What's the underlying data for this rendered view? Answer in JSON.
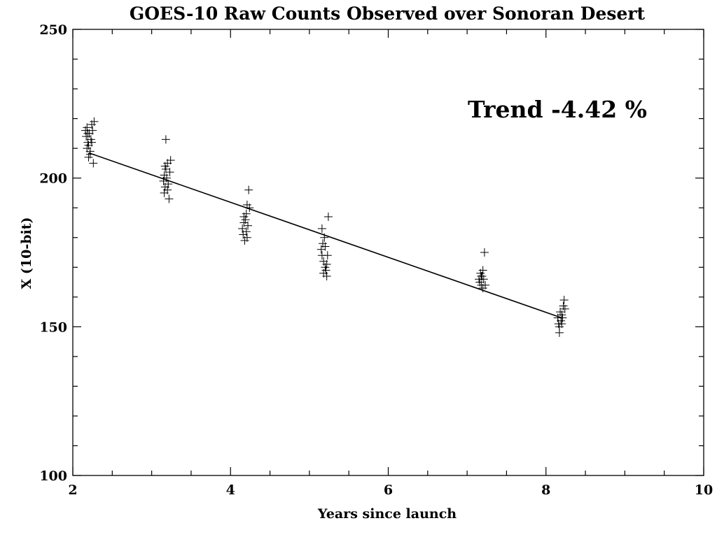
{
  "chart_data": {
    "type": "scatter",
    "title": "GOES-10 Raw Counts Observed over Sonoran Desert",
    "xlabel": "Years since launch",
    "ylabel": "X (10-bit)",
    "xlim": [
      2,
      10
    ],
    "ylim": [
      100,
      250
    ],
    "x_major_ticks": [
      2,
      4,
      6,
      8,
      10
    ],
    "x_tick_labels": [
      "2",
      "4",
      "6",
      "8",
      "10"
    ],
    "x_minor_ticks": [
      2.5,
      3,
      3.5,
      4.5,
      5,
      5.5,
      6.5,
      7,
      7.5,
      8.5,
      9,
      9.5
    ],
    "y_major_ticks": [
      100,
      150,
      200,
      250
    ],
    "y_tick_labels": [
      "100",
      "150",
      "200",
      "250"
    ],
    "y_minor_ticks": [
      110,
      120,
      130,
      140,
      160,
      170,
      180,
      190,
      210,
      220,
      230,
      240
    ],
    "grid": false,
    "annotation": "Trend -4.42 %",
    "series": [
      {
        "marker": "plus",
        "points": [
          [
            2.16,
            216
          ],
          [
            2.17,
            214
          ],
          [
            2.18,
            217
          ],
          [
            2.19,
            212
          ],
          [
            2.2,
            211
          ],
          [
            2.21,
            215
          ],
          [
            2.22,
            209
          ],
          [
            2.2,
            207
          ],
          [
            2.24,
            218
          ],
          [
            2.25,
            216
          ],
          [
            2.26,
            205
          ],
          [
            2.23,
            213
          ],
          [
            2.18,
            210
          ],
          [
            2.27,
            219
          ],
          [
            2.22,
            208
          ],
          [
            2.19,
            215
          ],
          [
            2.24,
            212
          ],
          [
            3.15,
            199
          ],
          [
            3.16,
            201
          ],
          [
            3.17,
            197
          ],
          [
            3.18,
            203
          ],
          [
            3.19,
            200
          ],
          [
            3.2,
            205
          ],
          [
            3.21,
            198
          ],
          [
            3.22,
            193
          ],
          [
            3.16,
            195
          ],
          [
            3.24,
            206
          ],
          [
            3.18,
            213
          ],
          [
            3.23,
            202
          ],
          [
            3.2,
            196
          ],
          [
            3.17,
            204
          ],
          [
            4.15,
            183
          ],
          [
            4.16,
            181
          ],
          [
            4.17,
            185
          ],
          [
            4.18,
            179
          ],
          [
            4.19,
            186
          ],
          [
            4.2,
            188
          ],
          [
            4.21,
            191
          ],
          [
            4.22,
            184
          ],
          [
            4.23,
            196
          ],
          [
            4.2,
            182
          ],
          [
            4.24,
            190
          ],
          [
            4.17,
            187
          ],
          [
            4.21,
            180
          ],
          [
            5.15,
            176
          ],
          [
            5.16,
            174
          ],
          [
            5.17,
            178
          ],
          [
            5.18,
            172
          ],
          [
            5.19,
            180
          ],
          [
            5.2,
            170
          ],
          [
            5.21,
            169
          ],
          [
            5.22,
            167
          ],
          [
            5.23,
            174
          ],
          [
            5.24,
            187
          ],
          [
            5.16,
            183
          ],
          [
            5.18,
            168
          ],
          [
            5.2,
            177
          ],
          [
            5.22,
            171
          ],
          [
            7.15,
            166
          ],
          [
            7.16,
            165
          ],
          [
            7.17,
            168
          ],
          [
            7.18,
            164
          ],
          [
            7.19,
            167
          ],
          [
            7.2,
            169
          ],
          [
            7.21,
            166
          ],
          [
            7.22,
            175
          ],
          [
            7.23,
            164
          ],
          [
            7.18,
            167
          ],
          [
            7.2,
            163
          ],
          [
            8.15,
            153
          ],
          [
            8.16,
            151
          ],
          [
            8.17,
            150
          ],
          [
            8.18,
            155
          ],
          [
            8.19,
            152
          ],
          [
            8.2,
            154
          ],
          [
            8.21,
            153
          ],
          [
            8.22,
            157
          ],
          [
            8.23,
            159
          ],
          [
            8.17,
            148
          ],
          [
            8.2,
            151
          ],
          [
            8.24,
            156
          ]
        ]
      }
    ],
    "trend_line": {
      "x": [
        2.2,
        8.2
      ],
      "y": [
        208.5,
        153
      ]
    }
  }
}
